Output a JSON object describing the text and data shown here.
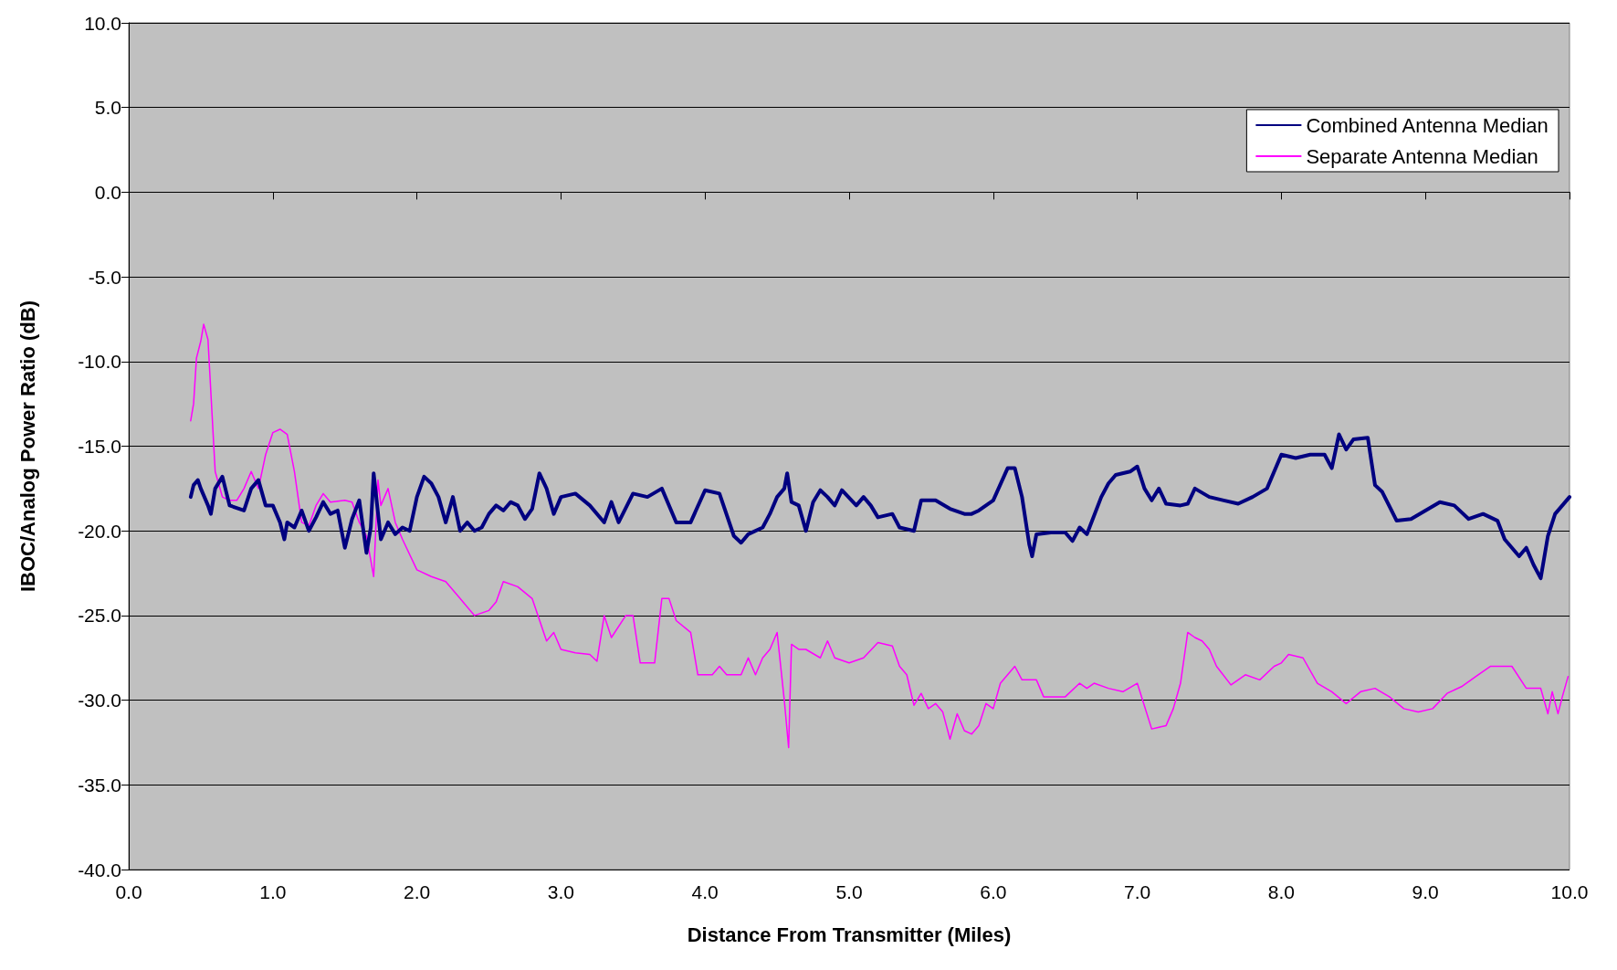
{
  "chart_data": {
    "type": "line",
    "xlabel": "Distance From Transmitter (Miles)",
    "ylabel": "IBOC/Analog Power Ratio (dB)",
    "xlim": [
      0,
      10
    ],
    "xticks": [
      {
        "value": 0,
        "label": "0.0"
      },
      {
        "value": 1,
        "label": "1.0"
      },
      {
        "value": 2,
        "label": "2.0"
      },
      {
        "value": 3,
        "label": "3.0"
      },
      {
        "value": 4,
        "label": "4.0"
      },
      {
        "value": 5,
        "label": "5.0"
      },
      {
        "value": 6,
        "label": "6.0"
      },
      {
        "value": 7,
        "label": "7.0"
      },
      {
        "value": 8,
        "label": "8.0"
      },
      {
        "value": 9,
        "label": "9.0"
      },
      {
        "value": 10,
        "label": "10.0"
      }
    ],
    "ylim": [
      -40,
      10
    ],
    "yticks": [
      {
        "value": -40,
        "label": "-40.0"
      },
      {
        "value": -35,
        "label": "-35.0"
      },
      {
        "value": -30,
        "label": "-30.0"
      },
      {
        "value": -25,
        "label": "-25.0"
      },
      {
        "value": -20,
        "label": "-20.0"
      },
      {
        "value": -15,
        "label": "-15.0"
      },
      {
        "value": -10,
        "label": "-10.0"
      },
      {
        "value": -5,
        "label": "-5.0"
      },
      {
        "value": 0,
        "label": "0.0"
      },
      {
        "value": 5,
        "label": "5.0"
      },
      {
        "value": 10,
        "label": "10.0"
      }
    ],
    "grid": "y",
    "legend": "top right",
    "series": [
      {
        "name": "Combined Antenna Median",
        "color": "#000080",
        "x": [
          0.43,
          0.45,
          0.48,
          0.5,
          0.55,
          0.57,
          0.6,
          0.65,
          0.7,
          0.8,
          0.85,
          0.9,
          0.95,
          1.0,
          1.05,
          1.08,
          1.1,
          1.15,
          1.2,
          1.25,
          1.3,
          1.35,
          1.4,
          1.45,
          1.5,
          1.55,
          1.6,
          1.65,
          1.68,
          1.7,
          1.75,
          1.8,
          1.85,
          1.9,
          1.95,
          2.0,
          2.05,
          2.1,
          2.15,
          2.2,
          2.25,
          2.3,
          2.35,
          2.4,
          2.45,
          2.5,
          2.55,
          2.6,
          2.65,
          2.7,
          2.75,
          2.8,
          2.85,
          2.9,
          2.95,
          3.0,
          3.1,
          3.2,
          3.3,
          3.35,
          3.4,
          3.5,
          3.6,
          3.7,
          3.8,
          3.9,
          4.0,
          4.1,
          4.2,
          4.25,
          4.3,
          4.4,
          4.45,
          4.5,
          4.55,
          4.57,
          4.6,
          4.65,
          4.7,
          4.75,
          4.8,
          4.85,
          4.9,
          4.95,
          5.05,
          5.1,
          5.15,
          5.2,
          5.3,
          5.35,
          5.45,
          5.5,
          5.6,
          5.7,
          5.8,
          5.85,
          5.9,
          6.0,
          6.1,
          6.15,
          6.2,
          6.25,
          6.27,
          6.3,
          6.4,
          6.5,
          6.55,
          6.6,
          6.65,
          6.75,
          6.8,
          6.85,
          6.95,
          7.0,
          7.05,
          7.1,
          7.15,
          7.2,
          7.3,
          7.35,
          7.4,
          7.5,
          7.6,
          7.7,
          7.8,
          7.9,
          8.0,
          8.1,
          8.2,
          8.3,
          8.35,
          8.4,
          8.45,
          8.5,
          8.6,
          8.65,
          8.7,
          8.8,
          8.9,
          9.0,
          9.1,
          9.2,
          9.3,
          9.4,
          9.5,
          9.55,
          9.6,
          9.65,
          9.7,
          9.75,
          9.8,
          9.85,
          9.9,
          9.95,
          10.0
        ],
        "values": [
          -18,
          -17.3,
          -17,
          -17.5,
          -18.5,
          -19,
          -17.5,
          -16.8,
          -18.5,
          -18.8,
          -17.5,
          -17,
          -18.5,
          -18.5,
          -19.5,
          -20.5,
          -19.5,
          -19.8,
          -18.8,
          -20,
          -19.2,
          -18.3,
          -19,
          -18.8,
          -21,
          -19.3,
          -18.2,
          -21.3,
          -19.8,
          -16.6,
          -20.5,
          -19.5,
          -20.2,
          -19.8,
          -20,
          -18,
          -16.8,
          -17.2,
          -18,
          -19.5,
          -18,
          -20,
          -19.5,
          -20,
          -19.8,
          -19,
          -18.5,
          -18.8,
          -18.3,
          -18.5,
          -19.3,
          -18.7,
          -16.6,
          -17.5,
          -19,
          -18,
          -17.8,
          -18.5,
          -19.5,
          -18.3,
          -19.5,
          -17.8,
          -18,
          -17.5,
          -19.5,
          -19.5,
          -17.6,
          -17.8,
          -20.3,
          -20.7,
          -20.2,
          -19.8,
          -19,
          -18,
          -17.5,
          -16.6,
          -18.3,
          -18.5,
          -20,
          -18.3,
          -17.6,
          -18,
          -18.5,
          -17.6,
          -18.5,
          -18,
          -18.5,
          -19.2,
          -19,
          -19.8,
          -20,
          -18.2,
          -18.2,
          -18.7,
          -19,
          -19,
          -18.8,
          -18.2,
          -16.3,
          -16.3,
          -18,
          -20.8,
          -21.5,
          -20.2,
          -20.1,
          -20.1,
          -20.6,
          -19.8,
          -20.2,
          -18,
          -17.2,
          -16.7,
          -16.5,
          -16.2,
          -17.5,
          -18.2,
          -17.5,
          -18.4,
          -18.5,
          -18.4,
          -17.5,
          -18,
          -18.2,
          -18.4,
          -18,
          -17.5,
          -15.5,
          -15.7,
          -15.5,
          -15.5,
          -16.3,
          -14.3,
          -15.2,
          -14.6,
          -14.5,
          -17.3,
          -17.7,
          -19.4,
          -19.3,
          -18.8,
          -18.3,
          -18.5,
          -19.3,
          -19,
          -19.4,
          -20.5,
          -21,
          -21.5,
          -21,
          -22,
          -22.8,
          -20.3,
          -19,
          -18.5,
          -18
        ]
      },
      {
        "name": "Separate Antenna Median",
        "color": "#ff00ff",
        "x": [
          0.43,
          0.45,
          0.47,
          0.5,
          0.52,
          0.55,
          0.6,
          0.65,
          0.7,
          0.75,
          0.8,
          0.85,
          0.9,
          0.95,
          1.0,
          1.05,
          1.1,
          1.15,
          1.2,
          1.25,
          1.3,
          1.35,
          1.4,
          1.5,
          1.55,
          1.6,
          1.65,
          1.7,
          1.73,
          1.75,
          1.8,
          1.85,
          1.9,
          2.0,
          2.1,
          2.2,
          2.3,
          2.4,
          2.5,
          2.55,
          2.6,
          2.7,
          2.8,
          2.9,
          2.95,
          3.0,
          3.1,
          3.2,
          3.25,
          3.3,
          3.35,
          3.45,
          3.5,
          3.55,
          3.65,
          3.7,
          3.75,
          3.8,
          3.9,
          3.95,
          4.05,
          4.1,
          4.15,
          4.25,
          4.3,
          4.35,
          4.4,
          4.45,
          4.5,
          4.55,
          4.58,
          4.6,
          4.65,
          4.7,
          4.8,
          4.85,
          4.9,
          5.0,
          5.1,
          5.2,
          5.3,
          5.35,
          5.4,
          5.45,
          5.5,
          5.55,
          5.6,
          5.65,
          5.7,
          5.75,
          5.8,
          5.85,
          5.9,
          5.95,
          6.0,
          6.05,
          6.1,
          6.15,
          6.2,
          6.3,
          6.35,
          6.5,
          6.6,
          6.65,
          6.7,
          6.8,
          6.9,
          7.0,
          7.1,
          7.2,
          7.25,
          7.3,
          7.35,
          7.4,
          7.45,
          7.5,
          7.55,
          7.65,
          7.75,
          7.85,
          7.95,
          8.0,
          8.05,
          8.15,
          8.25,
          8.35,
          8.45,
          8.55,
          8.65,
          8.75,
          8.85,
          8.95,
          9.05,
          9.15,
          9.25,
          9.35,
          9.45,
          9.6,
          9.7,
          9.8,
          9.85,
          9.88,
          9.92,
          9.95,
          9.99
        ],
        "values": [
          -13.5,
          -12.5,
          -9.8,
          -8.8,
          -7.8,
          -8.7,
          -16.5,
          -18,
          -18.2,
          -18.2,
          -17.5,
          -16.5,
          -17.5,
          -15.5,
          -14.2,
          -14,
          -14.3,
          -16.5,
          -19.5,
          -19.7,
          -18.5,
          -17.8,
          -18.3,
          -18.2,
          -18.3,
          -19.5,
          -20.3,
          -22.7,
          -17,
          -18.5,
          -17.5,
          -19.5,
          -20.5,
          -22.3,
          -22.7,
          -23,
          -24,
          -25,
          -24.7,
          -24.2,
          -23,
          -23.3,
          -24,
          -26.5,
          -26,
          -27,
          -27.2,
          -27.3,
          -27.7,
          -25,
          -26.3,
          -25,
          -25,
          -27.8,
          -27.8,
          -24,
          -24,
          -25.3,
          -26,
          -28.5,
          -28.5,
          -28,
          -28.5,
          -28.5,
          -27.5,
          -28.5,
          -27.5,
          -27,
          -26,
          -30,
          -32.8,
          -26.7,
          -27,
          -27,
          -27.5,
          -26.5,
          -27.5,
          -27.8,
          -27.5,
          -26.6,
          -26.8,
          -28,
          -28.5,
          -30.3,
          -29.6,
          -30.5,
          -30.2,
          -30.7,
          -32.3,
          -30.8,
          -31.8,
          -32,
          -31.5,
          -30.2,
          -30.5,
          -29,
          -28.5,
          -28,
          -28.8,
          -28.8,
          -29.8,
          -29.8,
          -29,
          -29.3,
          -29,
          -29.3,
          -29.5,
          -29,
          -31.7,
          -31.5,
          -30.5,
          -29,
          -26,
          -26.3,
          -26.5,
          -27,
          -28,
          -29.1,
          -28.5,
          -28.8,
          -28,
          -27.8,
          -27.3,
          -27.5,
          -29,
          -29.5,
          -30.2,
          -29.5,
          -29.3,
          -29.8,
          -30.5,
          -30.7,
          -30.5,
          -29.6,
          -29.2,
          -28.6,
          -28,
          -28,
          -29.3,
          -29.3,
          -30.8,
          -29.5,
          -30.8,
          -29.8,
          -28.6
        ]
      }
    ]
  }
}
